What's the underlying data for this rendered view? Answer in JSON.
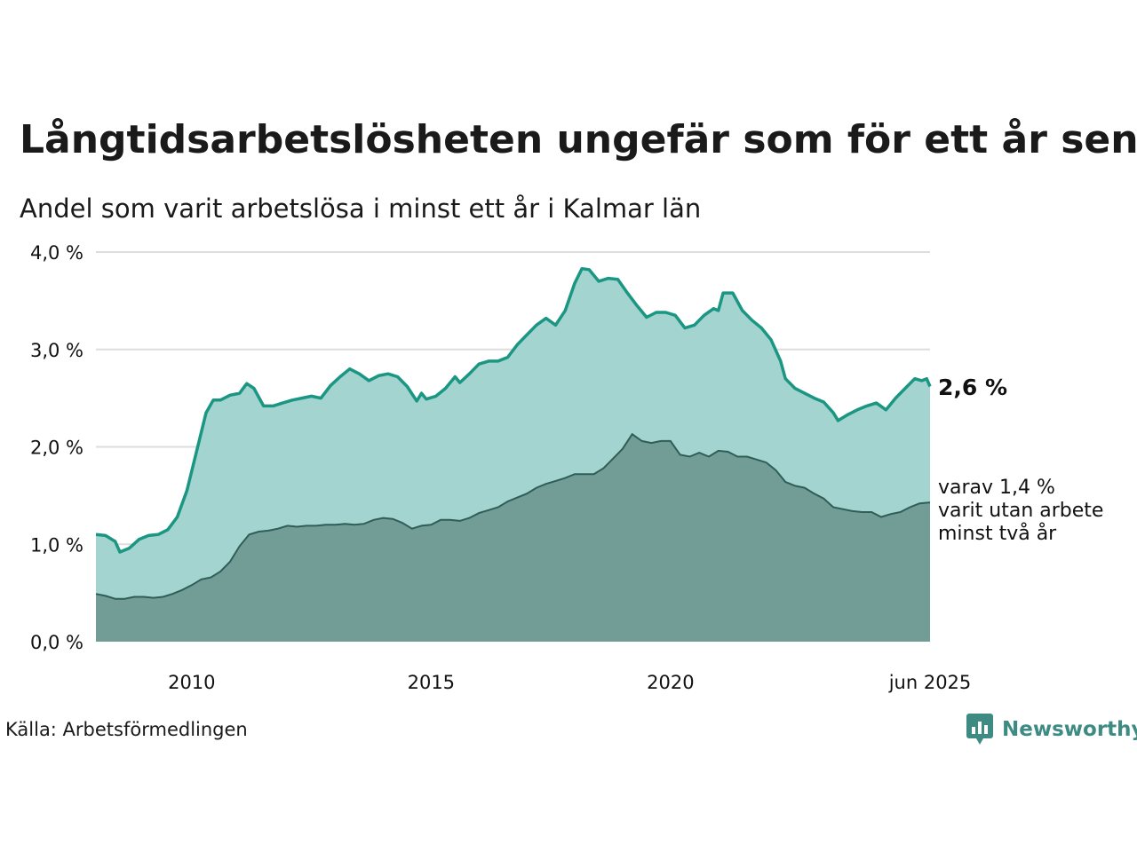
{
  "title": "Långtidsarbetslösheten ungefär som för ett år sen",
  "subtitle": "Andel som varit arbetslösa i minst ett år i Kalmar län",
  "source": "Källa: Arbetsförmedlingen",
  "brand": "Newsworthy",
  "colors": {
    "total": "#1a9683",
    "total_fill": "#a3d4cf",
    "long": "#2f5e57",
    "long_fill": "#729d96",
    "grid": "#dddddd"
  },
  "chart_data": {
    "type": "area",
    "y_ticks": [
      "0,0 %",
      "1,0 %",
      "2,0 %",
      "3,0 %",
      "4,0 %"
    ],
    "ylim": [
      0,
      4
    ],
    "xlim": [
      2008.0,
      2025.42
    ],
    "x_ticks": [
      {
        "value": 2010,
        "label": "2010"
      },
      {
        "value": 2015,
        "label": "2015"
      },
      {
        "value": 2020,
        "label": "2020"
      },
      {
        "value": 2025.42,
        "label": "jun 2025"
      }
    ],
    "grid": true,
    "labels": {
      "total_end": "2,6 %",
      "long_end": [
        "varav 1,4 %",
        "varit utan arbete",
        "minst två år"
      ]
    },
    "series": [
      {
        "id": "total",
        "points": [
          [
            2008.0,
            1.1
          ],
          [
            2008.2,
            1.09
          ],
          [
            2008.4,
            1.03
          ],
          [
            2008.5,
            0.92
          ],
          [
            2008.7,
            0.96
          ],
          [
            2008.9,
            1.05
          ],
          [
            2009.1,
            1.09
          ],
          [
            2009.3,
            1.1
          ],
          [
            2009.5,
            1.15
          ],
          [
            2009.7,
            1.28
          ],
          [
            2009.9,
            1.55
          ],
          [
            2010.1,
            1.95
          ],
          [
            2010.3,
            2.35
          ],
          [
            2010.45,
            2.48
          ],
          [
            2010.6,
            2.48
          ],
          [
            2010.8,
            2.53
          ],
          [
            2011.0,
            2.55
          ],
          [
            2011.15,
            2.65
          ],
          [
            2011.3,
            2.6
          ],
          [
            2011.5,
            2.42
          ],
          [
            2011.7,
            2.42
          ],
          [
            2011.9,
            2.45
          ],
          [
            2012.1,
            2.48
          ],
          [
            2012.3,
            2.5
          ],
          [
            2012.5,
            2.52
          ],
          [
            2012.7,
            2.5
          ],
          [
            2012.9,
            2.63
          ],
          [
            2013.1,
            2.72
          ],
          [
            2013.3,
            2.8
          ],
          [
            2013.5,
            2.75
          ],
          [
            2013.7,
            2.68
          ],
          [
            2013.9,
            2.73
          ],
          [
            2014.1,
            2.75
          ],
          [
            2014.3,
            2.72
          ],
          [
            2014.5,
            2.62
          ],
          [
            2014.7,
            2.47
          ],
          [
            2014.8,
            2.55
          ],
          [
            2014.9,
            2.49
          ],
          [
            2015.1,
            2.52
          ],
          [
            2015.3,
            2.6
          ],
          [
            2015.5,
            2.72
          ],
          [
            2015.6,
            2.66
          ],
          [
            2015.8,
            2.75
          ],
          [
            2016.0,
            2.85
          ],
          [
            2016.2,
            2.88
          ],
          [
            2016.4,
            2.88
          ],
          [
            2016.6,
            2.92
          ],
          [
            2016.8,
            3.05
          ],
          [
            2017.0,
            3.15
          ],
          [
            2017.2,
            3.25
          ],
          [
            2017.4,
            3.32
          ],
          [
            2017.6,
            3.25
          ],
          [
            2017.8,
            3.4
          ],
          [
            2018.0,
            3.68
          ],
          [
            2018.15,
            3.83
          ],
          [
            2018.3,
            3.82
          ],
          [
            2018.5,
            3.7
          ],
          [
            2018.7,
            3.73
          ],
          [
            2018.9,
            3.72
          ],
          [
            2019.1,
            3.58
          ],
          [
            2019.3,
            3.45
          ],
          [
            2019.5,
            3.33
          ],
          [
            2019.7,
            3.38
          ],
          [
            2019.9,
            3.38
          ],
          [
            2020.1,
            3.35
          ],
          [
            2020.3,
            3.22
          ],
          [
            2020.5,
            3.25
          ],
          [
            2020.7,
            3.35
          ],
          [
            2020.9,
            3.42
          ],
          [
            2021.0,
            3.4
          ],
          [
            2021.1,
            3.58
          ],
          [
            2021.3,
            3.58
          ],
          [
            2021.5,
            3.4
          ],
          [
            2021.7,
            3.3
          ],
          [
            2021.9,
            3.22
          ],
          [
            2022.1,
            3.1
          ],
          [
            2022.3,
            2.88
          ],
          [
            2022.4,
            2.7
          ],
          [
            2022.6,
            2.6
          ],
          [
            2022.8,
            2.55
          ],
          [
            2023.0,
            2.5
          ],
          [
            2023.2,
            2.46
          ],
          [
            2023.4,
            2.35
          ],
          [
            2023.5,
            2.27
          ],
          [
            2023.7,
            2.33
          ],
          [
            2023.9,
            2.38
          ],
          [
            2024.1,
            2.42
          ],
          [
            2024.3,
            2.45
          ],
          [
            2024.5,
            2.38
          ],
          [
            2024.7,
            2.5
          ],
          [
            2024.9,
            2.6
          ],
          [
            2025.1,
            2.7
          ],
          [
            2025.25,
            2.68
          ],
          [
            2025.35,
            2.7
          ],
          [
            2025.42,
            2.62
          ]
        ]
      },
      {
        "id": "long",
        "points": [
          [
            2008.0,
            0.49
          ],
          [
            2008.2,
            0.47
          ],
          [
            2008.4,
            0.44
          ],
          [
            2008.6,
            0.44
          ],
          [
            2008.8,
            0.46
          ],
          [
            2009.0,
            0.46
          ],
          [
            2009.2,
            0.45
          ],
          [
            2009.4,
            0.46
          ],
          [
            2009.6,
            0.49
          ],
          [
            2009.8,
            0.53
          ],
          [
            2010.0,
            0.58
          ],
          [
            2010.2,
            0.64
          ],
          [
            2010.4,
            0.66
          ],
          [
            2010.6,
            0.72
          ],
          [
            2010.8,
            0.82
          ],
          [
            2011.0,
            0.98
          ],
          [
            2011.2,
            1.1
          ],
          [
            2011.4,
            1.13
          ],
          [
            2011.6,
            1.14
          ],
          [
            2011.8,
            1.16
          ],
          [
            2012.0,
            1.19
          ],
          [
            2012.2,
            1.18
          ],
          [
            2012.4,
            1.19
          ],
          [
            2012.6,
            1.19
          ],
          [
            2012.8,
            1.2
          ],
          [
            2013.0,
            1.2
          ],
          [
            2013.2,
            1.21
          ],
          [
            2013.4,
            1.2
          ],
          [
            2013.6,
            1.21
          ],
          [
            2013.8,
            1.25
          ],
          [
            2014.0,
            1.27
          ],
          [
            2014.2,
            1.26
          ],
          [
            2014.4,
            1.22
          ],
          [
            2014.6,
            1.16
          ],
          [
            2014.8,
            1.19
          ],
          [
            2015.0,
            1.2
          ],
          [
            2015.2,
            1.25
          ],
          [
            2015.4,
            1.25
          ],
          [
            2015.6,
            1.24
          ],
          [
            2015.8,
            1.27
          ],
          [
            2016.0,
            1.32
          ],
          [
            2016.2,
            1.35
          ],
          [
            2016.4,
            1.38
          ],
          [
            2016.6,
            1.44
          ],
          [
            2016.8,
            1.48
          ],
          [
            2017.0,
            1.52
          ],
          [
            2017.2,
            1.58
          ],
          [
            2017.4,
            1.62
          ],
          [
            2017.6,
            1.65
          ],
          [
            2017.8,
            1.68
          ],
          [
            2018.0,
            1.72
          ],
          [
            2018.2,
            1.72
          ],
          [
            2018.4,
            1.72
          ],
          [
            2018.6,
            1.78
          ],
          [
            2018.8,
            1.88
          ],
          [
            2019.0,
            1.98
          ],
          [
            2019.2,
            2.13
          ],
          [
            2019.4,
            2.06
          ],
          [
            2019.6,
            2.04
          ],
          [
            2019.8,
            2.06
          ],
          [
            2020.0,
            2.06
          ],
          [
            2020.2,
            1.92
          ],
          [
            2020.4,
            1.9
          ],
          [
            2020.6,
            1.94
          ],
          [
            2020.8,
            1.9
          ],
          [
            2021.0,
            1.96
          ],
          [
            2021.2,
            1.95
          ],
          [
            2021.4,
            1.9
          ],
          [
            2021.6,
            1.9
          ],
          [
            2021.8,
            1.87
          ],
          [
            2022.0,
            1.84
          ],
          [
            2022.2,
            1.76
          ],
          [
            2022.4,
            1.64
          ],
          [
            2022.6,
            1.6
          ],
          [
            2022.8,
            1.58
          ],
          [
            2023.0,
            1.52
          ],
          [
            2023.2,
            1.47
          ],
          [
            2023.4,
            1.38
          ],
          [
            2023.6,
            1.36
          ],
          [
            2023.8,
            1.34
          ],
          [
            2024.0,
            1.33
          ],
          [
            2024.2,
            1.33
          ],
          [
            2024.4,
            1.28
          ],
          [
            2024.6,
            1.31
          ],
          [
            2024.8,
            1.33
          ],
          [
            2025.0,
            1.38
          ],
          [
            2025.2,
            1.42
          ],
          [
            2025.42,
            1.43
          ]
        ]
      }
    ]
  }
}
